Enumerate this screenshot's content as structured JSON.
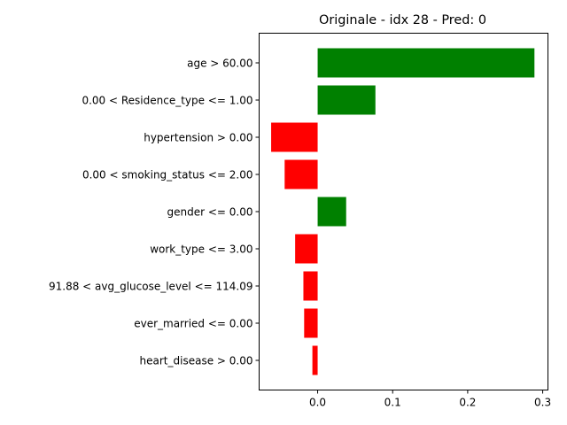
{
  "chart_data": {
    "type": "bar",
    "orientation": "horizontal",
    "title": "Originale - idx 28 - Pred: 0",
    "xlabel": "",
    "ylabel": "",
    "categories": [
      "age > 60.00",
      "0.00 < Residence_type <= 1.00",
      "hypertension > 0.00",
      "0.00 < smoking_status <= 2.00",
      "gender <= 0.00",
      "work_type <= 3.00",
      "91.88 < avg_glucose_level <= 114.09",
      "ever_married <= 0.00",
      "heart_disease > 0.00"
    ],
    "values": [
      0.289,
      0.077,
      -0.062,
      -0.044,
      0.038,
      -0.03,
      -0.019,
      -0.018,
      -0.007
    ],
    "xlim": [
      -0.078,
      0.307
    ],
    "xticks": [
      0.0,
      0.1,
      0.2,
      0.3
    ],
    "xtick_labels": [
      "0.0",
      "0.1",
      "0.2",
      "0.3"
    ],
    "grid": false,
    "colors": {
      "positive": "#008000",
      "negative": "#ff0000"
    }
  }
}
